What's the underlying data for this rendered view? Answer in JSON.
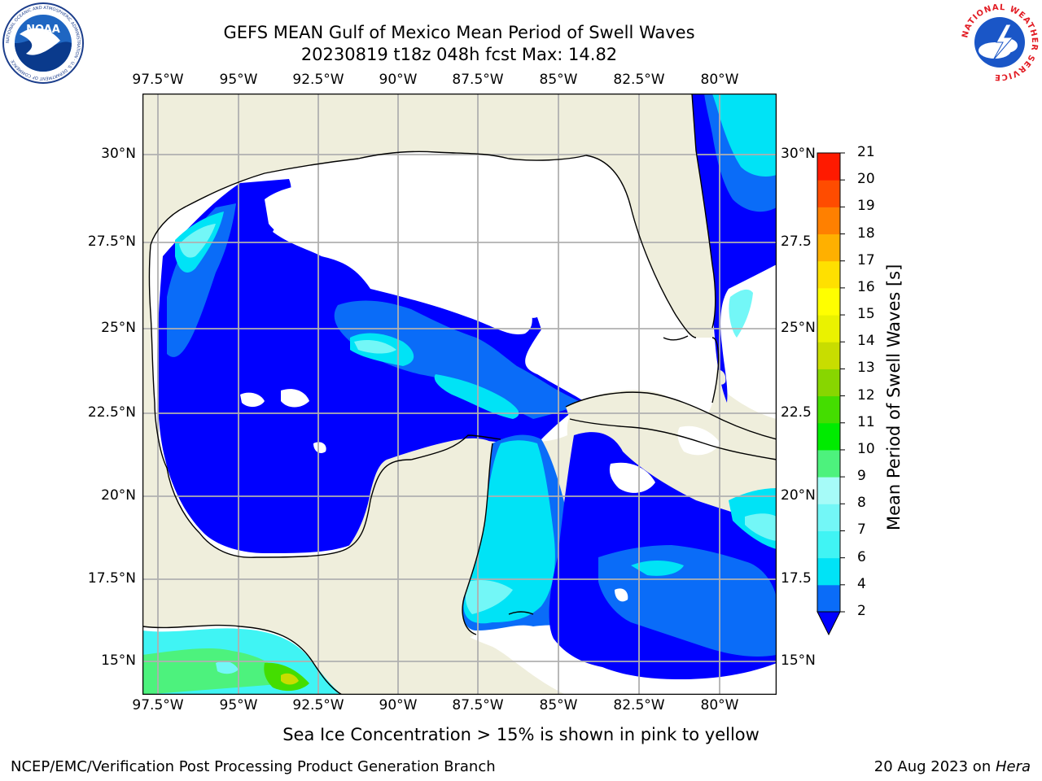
{
  "title": {
    "line1": "GEFS MEAN Gulf of Mexico Mean Period of Swell Waves",
    "line2": "20230819 t18z 048h fcst   Max: 14.82"
  },
  "map": {
    "lon_ticks": [
      "97.5°W",
      "95°W",
      "92.5°W",
      "90°W",
      "87.5°W",
      "85°W",
      "82.5°W",
      "80°W"
    ],
    "lat_ticks_left": [
      "30°N",
      "27.5°N",
      "25°N",
      "22.5°N",
      "20°N",
      "17.5°N",
      "15°N"
    ],
    "lat_ticks_right": [
      "30°N",
      "27.5",
      "25°N",
      "22.5",
      "20°N",
      "17.5",
      "15°N"
    ],
    "colors": {
      "land": "#efeedc",
      "ocean_nodata": "#ffffff",
      "grid": "#b0b0b0",
      "coast": "#000000"
    }
  },
  "colorbar": {
    "label": "Mean Period of Swell Waves [s]",
    "levels": [
      "2",
      "4",
      "6",
      "7",
      "8",
      "9",
      "10",
      "11",
      "12",
      "13",
      "14",
      "15",
      "16",
      "17",
      "18",
      "19",
      "20",
      "21"
    ],
    "colors": [
      "#0a6cf8",
      "#00e3f6",
      "#40f4f4",
      "#73f7f7",
      "#a6fbf8",
      "#4df27d",
      "#00eb00",
      "#44dd00",
      "#88d600",
      "#c8dd00",
      "#eaf200",
      "#ffff00",
      "#ffe000",
      "#ffb000",
      "#ff8000",
      "#ff4c00",
      "#ff1a00"
    ],
    "under_color": "#0000ff"
  },
  "caption": "Sea Ice Concentration > 15% is shown in pink to yellow",
  "footer": {
    "left": "NCEP/EMC/Verification Post Processing Product Generation Branch",
    "right_date": "20 Aug 2023 on ",
    "right_host": "Hera"
  },
  "logos": {
    "noaa_text": "NOAA",
    "noaa_ring": "NATIONAL OCEANIC AND ATMOSPHERIC ADMINISTRATION · U.S. DEPARTMENT OF COMMERCE",
    "nws_ring": "NATIONAL WEATHER SERVICE"
  }
}
